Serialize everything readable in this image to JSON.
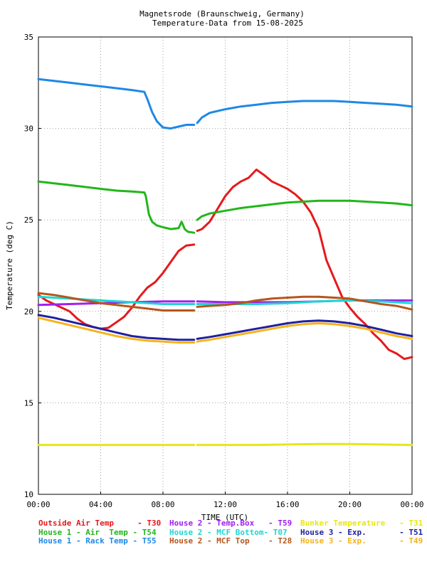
{
  "chart_data": {
    "type": "line",
    "title": "Magnetsrode (Braunschweig, Germany)",
    "subtitle": "Temperature-Data from 15-08-2025",
    "xlabel": "TIME (UTC)",
    "ylabel": "Temperature (deg C)",
    "xlim": [
      0,
      24
    ],
    "ylim": [
      10,
      35
    ],
    "x_ticks": [
      "00:00",
      "04:00",
      "08:00",
      "12:00",
      "16:00",
      "20:00",
      "00:00"
    ],
    "y_ticks": [
      "10",
      "15",
      "20",
      "25",
      "30",
      "35"
    ],
    "grid": true,
    "legend_position": "bottom",
    "series": [
      {
        "name": "Outside Air Temp     - T30",
        "color": "#e41a1c",
        "segments": [
          [
            [
              0,
              20.9
            ],
            [
              0.5,
              20.6
            ],
            [
              1,
              20.4
            ],
            [
              2,
              20
            ],
            [
              2.5,
              19.6
            ],
            [
              3,
              19.3
            ],
            [
              3.5,
              19.15
            ],
            [
              4,
              19.05
            ],
            [
              4.5,
              19.1
            ],
            [
              5,
              19.4
            ],
            [
              5.5,
              19.7
            ],
            [
              6,
              20.2
            ],
            [
              6.5,
              20.8
            ],
            [
              7,
              21.3
            ],
            [
              7.5,
              21.6
            ],
            [
              8,
              22.1
            ],
            [
              8.5,
              22.7
            ],
            [
              9,
              23.3
            ],
            [
              9.5,
              23.6
            ],
            [
              10,
              23.65
            ]
          ],
          [
            [
              10.2,
              24.4
            ],
            [
              10.5,
              24.5
            ],
            [
              11,
              24.9
            ],
            [
              11.5,
              25.6
            ],
            [
              12,
              26.3
            ],
            [
              12.5,
              26.8
            ],
            [
              13,
              27.1
            ],
            [
              13.5,
              27.3
            ],
            [
              14,
              27.75
            ],
            [
              14.5,
              27.45
            ],
            [
              15,
              27.1
            ],
            [
              15.5,
              26.9
            ],
            [
              16,
              26.7
            ],
            [
              16.5,
              26.4
            ],
            [
              17,
              26
            ],
            [
              17.5,
              25.4
            ],
            [
              18,
              24.5
            ],
            [
              18.5,
              22.8
            ],
            [
              19,
              21.8
            ],
            [
              19.5,
              20.8
            ],
            [
              20,
              20.2
            ],
            [
              20.5,
              19.7
            ],
            [
              21,
              19.3
            ],
            [
              21.5,
              18.8
            ],
            [
              22,
              18.4
            ],
            [
              22.5,
              17.9
            ],
            [
              23,
              17.7
            ],
            [
              23.5,
              17.4
            ],
            [
              24,
              17.5
            ]
          ]
        ]
      },
      {
        "name": "House 1 - Air  Temp - T54",
        "color": "#22b61b",
        "segments": [
          [
            [
              0,
              27.1
            ],
            [
              1,
              27
            ],
            [
              2,
              26.9
            ],
            [
              3,
              26.8
            ],
            [
              4,
              26.7
            ],
            [
              5,
              26.6
            ],
            [
              6,
              26.55
            ],
            [
              6.8,
              26.5
            ],
            [
              6.9,
              26.3
            ],
            [
              7,
              25.8
            ],
            [
              7.1,
              25.3
            ],
            [
              7.3,
              24.9
            ],
            [
              7.6,
              24.7
            ],
            [
              8,
              24.6
            ],
            [
              8.5,
              24.5
            ],
            [
              9,
              24.55
            ],
            [
              9.2,
              24.9
            ],
            [
              9.4,
              24.5
            ],
            [
              9.6,
              24.35
            ],
            [
              10,
              24.3
            ]
          ],
          [
            [
              10.2,
              25
            ],
            [
              10.5,
              25.2
            ],
            [
              11,
              25.35
            ],
            [
              12,
              25.5
            ],
            [
              13,
              25.65
            ],
            [
              14,
              25.75
            ],
            [
              15,
              25.85
            ],
            [
              16,
              25.95
            ],
            [
              17,
              26
            ],
            [
              18,
              26.05
            ],
            [
              19,
              26.05
            ],
            [
              20,
              26.05
            ],
            [
              21,
              26
            ],
            [
              22,
              25.95
            ],
            [
              23,
              25.9
            ],
            [
              24,
              25.8
            ]
          ]
        ]
      },
      {
        "name": "House 1 - Rack Temp - T55",
        "color": "#1e88e5",
        "segments": [
          [
            [
              0,
              32.7
            ],
            [
              1,
              32.6
            ],
            [
              2,
              32.5
            ],
            [
              3,
              32.4
            ],
            [
              4,
              32.3
            ],
            [
              5,
              32.2
            ],
            [
              6,
              32.1
            ],
            [
              6.8,
              32
            ],
            [
              7,
              31.6
            ],
            [
              7.3,
              30.9
            ],
            [
              7.6,
              30.4
            ],
            [
              8,
              30.05
            ],
            [
              8.5,
              30
            ],
            [
              9,
              30.1
            ],
            [
              9.5,
              30.2
            ],
            [
              10,
              30.2
            ]
          ],
          [
            [
              10.2,
              30.3
            ],
            [
              10.5,
              30.6
            ],
            [
              11,
              30.85
            ],
            [
              12,
              31.05
            ],
            [
              13,
              31.2
            ],
            [
              14,
              31.3
            ],
            [
              15,
              31.4
            ],
            [
              16,
              31.45
            ],
            [
              17,
              31.5
            ],
            [
              18,
              31.5
            ],
            [
              19,
              31.5
            ],
            [
              20,
              31.45
            ],
            [
              21,
              31.4
            ],
            [
              22,
              31.35
            ],
            [
              23,
              31.3
            ],
            [
              24,
              31.2
            ]
          ]
        ]
      },
      {
        "name": "House 2 - Temp.Box   - T59",
        "color": "#a020f0",
        "segments": [
          [
            [
              0,
              20.35
            ],
            [
              2,
              20.4
            ],
            [
              4,
              20.45
            ],
            [
              6,
              20.5
            ],
            [
              8,
              20.55
            ],
            [
              10,
              20.55
            ]
          ],
          [
            [
              10.2,
              20.55
            ],
            [
              12,
              20.5
            ],
            [
              14,
              20.5
            ],
            [
              16,
              20.5
            ],
            [
              18,
              20.55
            ],
            [
              20,
              20.6
            ],
            [
              22,
              20.6
            ],
            [
              24,
              20.6
            ]
          ]
        ]
      },
      {
        "name": "House 2 - MCF Bottom- T07",
        "color": "#1ed6d2",
        "segments": [
          [
            [
              0,
              20.8
            ],
            [
              2,
              20.7
            ],
            [
              4,
              20.6
            ],
            [
              6,
              20.5
            ],
            [
              8,
              20.4
            ],
            [
              10,
              20.4
            ]
          ],
          [
            [
              10.2,
              20.4
            ],
            [
              12,
              20.4
            ],
            [
              14,
              20.4
            ],
            [
              16,
              20.45
            ],
            [
              18,
              20.55
            ],
            [
              20,
              20.6
            ],
            [
              22,
              20.55
            ],
            [
              24,
              20.45
            ]
          ]
        ]
      },
      {
        "name": "House 2 - MCF Top    - T28",
        "color": "#b5561c",
        "segments": [
          [
            [
              0,
              21
            ],
            [
              1,
              20.9
            ],
            [
              2,
              20.75
            ],
            [
              3,
              20.6
            ],
            [
              4,
              20.45
            ],
            [
              5,
              20.35
            ],
            [
              6,
              20.25
            ],
            [
              7,
              20.15
            ],
            [
              8,
              20.05
            ],
            [
              9,
              20.05
            ],
            [
              10,
              20.05
            ]
          ],
          [
            [
              10.2,
              20.25
            ],
            [
              11,
              20.3
            ],
            [
              12,
              20.35
            ],
            [
              13,
              20.45
            ],
            [
              14,
              20.6
            ],
            [
              15,
              20.7
            ],
            [
              16,
              20.75
            ],
            [
              17,
              20.8
            ],
            [
              18,
              20.8
            ],
            [
              19,
              20.75
            ],
            [
              20,
              20.7
            ],
            [
              21,
              20.55
            ],
            [
              22,
              20.4
            ],
            [
              23,
              20.3
            ],
            [
              24,
              20.1
            ]
          ]
        ]
      },
      {
        "name": "Bunker Temperature   - T31",
        "color": "#e6e619",
        "segments": [
          [
            [
              0,
              12.7
            ],
            [
              4,
              12.7
            ],
            [
              8,
              12.7
            ],
            [
              10,
              12.7
            ]
          ],
          [
            [
              10.2,
              12.7
            ],
            [
              14,
              12.7
            ],
            [
              18,
              12.75
            ],
            [
              20,
              12.75
            ],
            [
              24,
              12.7
            ]
          ]
        ]
      },
      {
        "name": "House 3 - Exp.       - T51",
        "color": "#2020a0",
        "segments": [
          [
            [
              0,
              19.8
            ],
            [
              1,
              19.65
            ],
            [
              2,
              19.45
            ],
            [
              3,
              19.25
            ],
            [
              4,
              19.05
            ],
            [
              5,
              18.85
            ],
            [
              6,
              18.65
            ],
            [
              7,
              18.55
            ],
            [
              8,
              18.5
            ],
            [
              9,
              18.45
            ],
            [
              10,
              18.45
            ]
          ],
          [
            [
              10.2,
              18.5
            ],
            [
              11,
              18.6
            ],
            [
              12,
              18.75
            ],
            [
              13,
              18.9
            ],
            [
              14,
              19.05
            ],
            [
              15,
              19.2
            ],
            [
              16,
              19.35
            ],
            [
              17,
              19.45
            ],
            [
              18,
              19.5
            ],
            [
              19,
              19.45
            ],
            [
              20,
              19.35
            ],
            [
              21,
              19.2
            ],
            [
              22,
              19
            ],
            [
              23,
              18.8
            ],
            [
              24,
              18.65
            ]
          ]
        ]
      },
      {
        "name": "House 3 - Exp.       - T49",
        "color": "#f5b31c",
        "segments": [
          [
            [
              0,
              19.65
            ],
            [
              1,
              19.45
            ],
            [
              2,
              19.25
            ],
            [
              3,
              19.05
            ],
            [
              4,
              18.85
            ],
            [
              5,
              18.65
            ],
            [
              6,
              18.5
            ],
            [
              7,
              18.4
            ],
            [
              8,
              18.35
            ],
            [
              9,
              18.3
            ],
            [
              10,
              18.3
            ]
          ],
          [
            [
              10.2,
              18.35
            ],
            [
              11,
              18.45
            ],
            [
              12,
              18.6
            ],
            [
              13,
              18.75
            ],
            [
              14,
              18.9
            ],
            [
              15,
              19.05
            ],
            [
              16,
              19.2
            ],
            [
              17,
              19.3
            ],
            [
              18,
              19.35
            ],
            [
              19,
              19.3
            ],
            [
              20,
              19.2
            ],
            [
              21,
              19.05
            ],
            [
              22,
              18.85
            ],
            [
              23,
              18.65
            ],
            [
              24,
              18.5
            ]
          ]
        ]
      }
    ]
  }
}
